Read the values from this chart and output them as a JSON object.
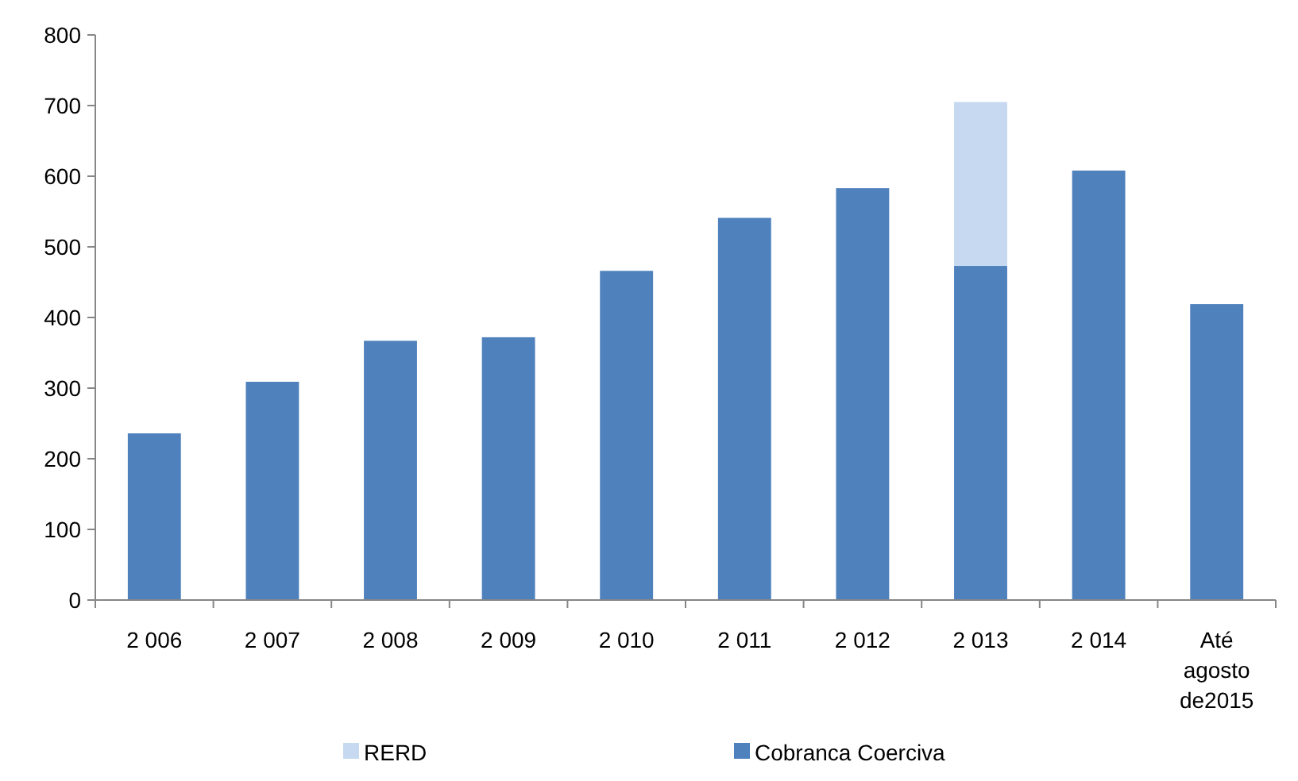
{
  "chart_data": {
    "type": "bar",
    "stacked": true,
    "categories": [
      "2 006",
      "2 007",
      "2 008",
      "2 009",
      "2 010",
      "2 011",
      "2 012",
      "2 013",
      "2 014",
      "Até agosto de2015"
    ],
    "series": [
      {
        "name": "Cobranca Coerciva",
        "color": "#4f81bd",
        "values": [
          236,
          309,
          367,
          372,
          466,
          541,
          583,
          473,
          608,
          419
        ]
      },
      {
        "name": "RERD",
        "color": "#c6d9f1",
        "values": [
          null,
          null,
          null,
          null,
          null,
          null,
          null,
          232,
          null,
          null
        ]
      }
    ],
    "ylim": [
      0,
      800
    ],
    "yticks": [
      0,
      100,
      200,
      300,
      400,
      500,
      600,
      700,
      800
    ],
    "grid": false,
    "legend": "bottom"
  }
}
